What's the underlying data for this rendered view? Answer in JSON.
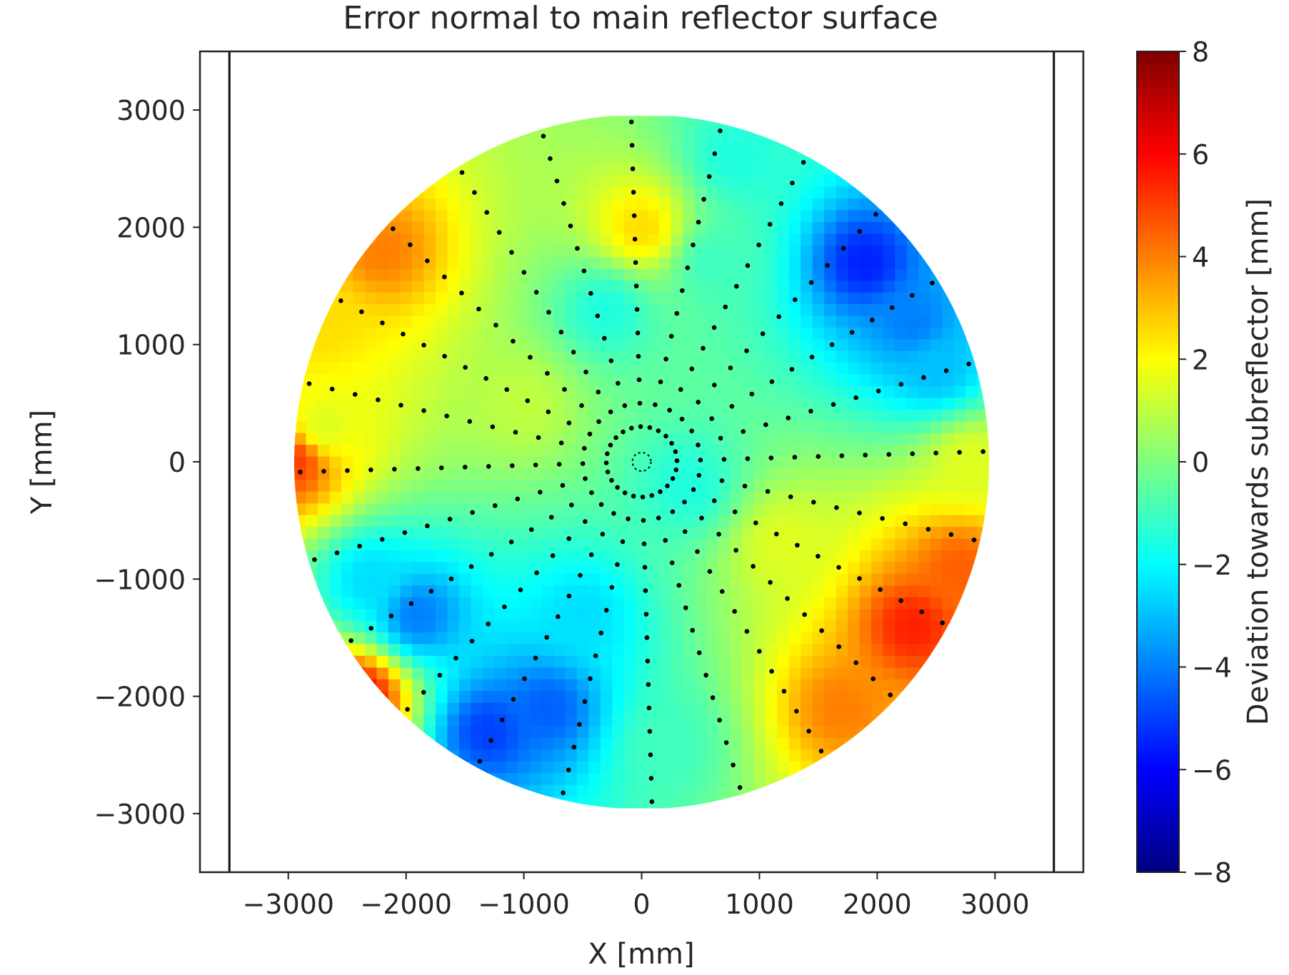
{
  "chart_data": {
    "type": "heatmap",
    "title": "Error normal to main reflector surface",
    "xlabel": "X [mm]",
    "ylabel": "Y [mm]",
    "colorbar_label": "Deviation towards subreflector [mm]",
    "colormap": "jet",
    "colormap_stops": [
      "#00007f",
      "#0000ff",
      "#007fff",
      "#00ffff",
      "#7fff7f",
      "#ffff00",
      "#ff7f00",
      "#ff0000",
      "#7f0000"
    ],
    "value_range": [
      -8,
      8
    ],
    "xlim": [
      -3750,
      3750
    ],
    "ylim": [
      -3500,
      3500
    ],
    "xticks": [
      -3000,
      -2000,
      -1000,
      0,
      1000,
      2000,
      3000
    ],
    "yticks": [
      -3000,
      -2000,
      -1000,
      0,
      1000,
      2000,
      3000
    ],
    "xtick_labels": [
      "−3000",
      "−2000",
      "−1000",
      "0",
      "1000",
      "2000",
      "3000"
    ],
    "ytick_labels": [
      "−3000",
      "−2000",
      "−1000",
      "0",
      "1000",
      "2000",
      "3000"
    ],
    "colorbar_ticks": [
      8,
      6,
      4,
      2,
      0,
      -2,
      -4,
      -6,
      -8
    ],
    "colorbar_tick_labels": [
      "8",
      "6",
      "4",
      "2",
      "0",
      "−2",
      "−4",
      "−6",
      "−8"
    ],
    "vertical_lines_x": [
      -3500,
      3500
    ],
    "reflector_radius": 2950,
    "grid": false,
    "measurement_points": {
      "pattern": "radial",
      "spoke_count": 24,
      "radial_step_mm": 200,
      "min_radius_mm": 300,
      "max_radius_mm": 2950,
      "color": "#000000"
    },
    "error_features": [
      {
        "x": 1900,
        "y": 1700,
        "value": -5.5
      },
      {
        "x": 2300,
        "y": 1200,
        "value": -4.0
      },
      {
        "x": 2500,
        "y": 800,
        "value": -3.0
      },
      {
        "x": -1300,
        "y": -2300,
        "value": -5.0
      },
      {
        "x": -800,
        "y": -2100,
        "value": -4.5
      },
      {
        "x": -1900,
        "y": -1300,
        "value": -4.0
      },
      {
        "x": -500,
        "y": -1300,
        "value": -2.5
      },
      {
        "x": -2300,
        "y": -1000,
        "value": -2.5
      },
      {
        "x": -300,
        "y": 1300,
        "value": -1.5
      },
      {
        "x": 600,
        "y": 1700,
        "value": -1.0
      },
      {
        "x": 800,
        "y": 2600,
        "value": -1.5
      },
      {
        "x": 400,
        "y": -200,
        "value": -1.5
      },
      {
        "x": 2300,
        "y": -1400,
        "value": 5.5
      },
      {
        "x": 2700,
        "y": -900,
        "value": 4.5
      },
      {
        "x": 1700,
        "y": -2100,
        "value": 4.0
      },
      {
        "x": -2200,
        "y": 1800,
        "value": 4.0
      },
      {
        "x": -2700,
        "y": 1200,
        "value": 2.5
      },
      {
        "x": -2950,
        "y": 0,
        "value": 5.0
      },
      {
        "x": -2400,
        "y": -2000,
        "value": 6.0
      },
      {
        "x": 0,
        "y": 2000,
        "value": 2.5
      },
      {
        "x": 200,
        "y": -2400,
        "value": -1.0
      },
      {
        "x": -2700,
        "y": 300,
        "value": 1.5
      },
      {
        "x": 2800,
        "y": 0,
        "value": 1.5
      },
      {
        "x": 1200,
        "y": -700,
        "value": 1.5
      },
      {
        "x": -1000,
        "y": 500,
        "value": 1.0
      }
    ]
  }
}
